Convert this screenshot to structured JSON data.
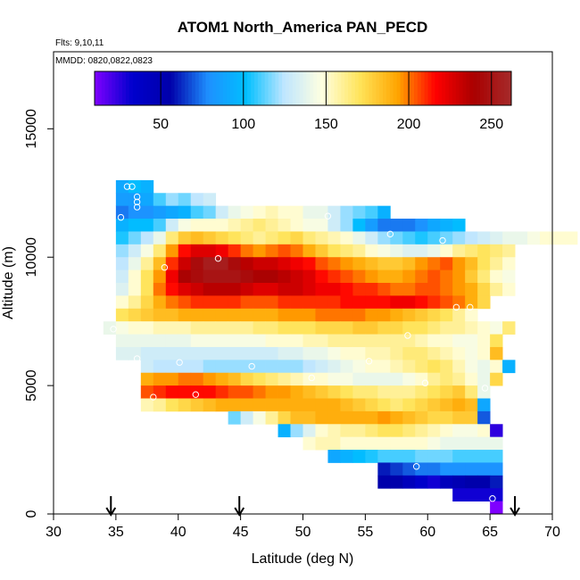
{
  "chart_data": {
    "type": "heatmap",
    "title": "ATOM1 North_America PAN_PECD",
    "flights_note": "Flts: 9,10,11",
    "dates_note": "MMDD: 0820,0822,0823",
    "xlabel": "Latitude (deg N)",
    "ylabel": "Altitude (m)",
    "xlim": [
      30,
      70
    ],
    "ylim": [
      0,
      18000
    ],
    "xticks": [
      30,
      35,
      40,
      45,
      50,
      55,
      60,
      65,
      70
    ],
    "yticks": [
      0,
      5000,
      10000,
      15000
    ],
    "colorbar": {
      "min": 10,
      "max": 262,
      "ticks": [
        50,
        100,
        150,
        200,
        250
      ],
      "colors": [
        "#7f00ff",
        "#0000cd",
        "#0000aa",
        "#1e90ff",
        "#00bfff",
        "#bfe6ff",
        "#ffffe0",
        "#ffe45a",
        "#ffa500",
        "#ff0000",
        "#aa0000",
        "#a52a2a"
      ]
    },
    "cell_size": {
      "lat_deg": 1,
      "alt_m": 500
    },
    "rows": [
      {
        "alt": 12750,
        "lat_start": 35,
        "values": [
          90,
          100,
          95
        ]
      },
      {
        "alt": 12250,
        "lat_start": 35,
        "values": [
          85,
          85,
          90,
          110,
          120,
          115,
          125,
          130
        ]
      },
      {
        "alt": 11750,
        "lat_start": 35,
        "values": [
          75,
          80,
          80,
          85,
          90,
          95,
          110,
          115,
          130,
          140,
          145,
          150,
          155,
          150,
          150,
          140,
          140,
          130,
          120,
          115,
          110,
          95
        ]
      },
      {
        "alt": 11250,
        "lat_start": 35,
        "values": [
          95,
          100,
          100,
          110,
          130,
          145,
          150,
          150,
          150,
          155,
          160,
          165,
          160,
          155,
          150,
          145,
          145,
          130,
          120,
          100,
          85,
          75,
          75,
          75,
          80,
          90,
          95,
          100
        ]
      },
      {
        "alt": 10750,
        "lat_start": 35,
        "values": [
          105,
          115,
          125,
          140,
          165,
          180,
          185,
          180,
          175,
          170,
          165,
          160,
          165,
          170,
          175,
          165,
          160,
          155,
          150,
          140,
          130,
          120,
          115,
          110,
          105,
          110,
          115,
          120,
          125,
          130,
          135,
          140,
          140,
          145,
          150,
          150,
          150
        ]
      },
      {
        "alt": 10250,
        "lat_start": 35,
        "values": [
          120,
          130,
          145,
          165,
          195,
          215,
          225,
          225,
          220,
          210,
          200,
          195,
          200,
          205,
          200,
          190,
          180,
          170,
          165,
          160,
          150,
          145,
          140,
          135,
          135,
          140,
          150,
          160,
          165,
          170,
          165,
          160
        ]
      },
      {
        "alt": 9750,
        "lat_start": 35,
        "values": [
          125,
          140,
          160,
          185,
          210,
          230,
          245,
          255,
          255,
          245,
          235,
          230,
          230,
          225,
          220,
          215,
          205,
          200,
          195,
          190,
          185,
          180,
          180,
          185,
          195,
          200,
          205,
          195,
          185,
          170,
          160,
          150
        ]
      },
      {
        "alt": 9250,
        "lat_start": 35,
        "values": [
          130,
          150,
          170,
          195,
          220,
          240,
          245,
          250,
          250,
          250,
          245,
          240,
          240,
          235,
          230,
          225,
          215,
          210,
          205,
          200,
          195,
          190,
          190,
          195,
          200,
          205,
          200,
          195,
          180,
          165,
          150,
          145
        ]
      },
      {
        "alt": 8750,
        "lat_start": 35,
        "values": [
          135,
          150,
          170,
          200,
          215,
          225,
          230,
          235,
          235,
          235,
          230,
          225,
          225,
          230,
          230,
          225,
          220,
          220,
          215,
          210,
          210,
          205,
          200,
          200,
          205,
          205,
          200,
          195,
          190,
          175,
          160,
          150
        ]
      },
      {
        "alt": 8250,
        "lat_start": 35,
        "values": [
          150,
          160,
          175,
          190,
          200,
          205,
          210,
          210,
          210,
          210,
          205,
          205,
          205,
          210,
          210,
          210,
          210,
          210,
          215,
          215,
          215,
          215,
          220,
          220,
          215,
          210,
          205,
          200,
          190,
          175
        ]
      },
      {
        "alt": 7750,
        "lat_start": 35,
        "values": [
          170,
          175,
          180,
          185,
          185,
          190,
          190,
          190,
          190,
          190,
          190,
          190,
          190,
          195,
          195,
          195,
          200,
          200,
          200,
          200,
          195,
          195,
          190,
          185,
          180,
          175,
          170,
          160,
          150
        ]
      },
      {
        "alt": 7250,
        "lat_start": 34,
        "values": [
          140,
          145,
          150,
          150,
          155,
          155,
          155,
          160,
          160,
          160,
          160,
          160,
          165,
          165,
          170,
          170,
          170,
          175,
          175,
          175,
          180,
          180,
          175,
          175,
          170,
          170,
          165,
          160,
          160,
          155,
          150,
          145,
          165
        ]
      },
      {
        "alt": 6750,
        "lat_start": 35,
        "values": [
          140,
          140,
          140,
          140,
          140,
          140,
          145,
          145,
          145,
          145,
          145,
          145,
          150,
          150,
          150,
          155,
          155,
          160,
          160,
          160,
          160,
          160,
          160,
          160,
          155,
          150,
          150,
          145,
          145,
          150,
          170
        ]
      },
      {
        "alt": 6250,
        "lat_start": 35,
        "values": [
          135,
          135,
          130,
          130,
          130,
          130,
          130,
          130,
          130,
          130,
          130,
          130,
          130,
          135,
          135,
          140,
          140,
          145,
          150,
          150,
          155,
          155,
          160,
          165,
          165,
          160,
          155,
          150,
          145,
          150,
          185
        ]
      },
      {
        "alt": 5750,
        "lat_start": 37,
        "values": [
          130,
          125,
          125,
          125,
          125,
          120,
          120,
          120,
          120,
          120,
          120,
          120,
          120,
          125,
          130,
          135,
          140,
          145,
          150,
          150,
          155,
          160,
          165,
          170,
          165,
          155,
          145,
          140,
          150,
          95
        ]
      },
      {
        "alt": 5250,
        "lat_start": 37,
        "values": [
          190,
          195,
          195,
          200,
          200,
          195,
          190,
          185,
          175,
          170,
          165,
          160,
          155,
          150,
          150,
          145,
          145,
          140,
          140,
          140,
          140,
          145,
          150,
          160,
          165,
          160,
          150,
          140,
          175
        ]
      },
      {
        "alt": 4750,
        "lat_start": 37,
        "values": [
          205,
          210,
          215,
          215,
          215,
          215,
          210,
          205,
          205,
          200,
          195,
          195,
          190,
          185,
          180,
          175,
          170,
          165,
          165,
          160,
          160,
          160,
          165,
          170,
          175,
          180,
          165,
          140
        ]
      },
      {
        "alt": 4250,
        "lat_start": 37,
        "values": [
          155,
          160,
          170,
          175,
          180,
          185,
          190,
          190,
          190,
          190,
          190,
          190,
          190,
          190,
          190,
          190,
          185,
          180,
          175,
          170,
          165,
          170,
          175,
          180,
          185,
          190,
          185,
          90
        ]
      },
      {
        "alt": 3750,
        "lat_start": 44,
        "values": [
          115,
          130,
          145,
          160,
          175,
          185,
          185,
          190,
          190,
          190,
          190,
          190,
          195,
          190,
          185,
          180,
          175,
          175,
          180,
          180,
          70
        ]
      },
      {
        "alt": 3250,
        "lat_start": 48,
        "values": [
          95,
          120,
          135,
          150,
          155,
          160,
          160,
          165,
          170,
          170,
          165,
          160,
          155,
          150,
          145,
          145,
          150,
          25
        ]
      },
      {
        "alt": 2750,
        "lat_start": 50,
        "values": [
          150,
          155,
          155,
          150,
          150,
          150,
          150,
          150,
          150,
          150,
          145,
          140,
          140,
          140,
          140,
          140
        ]
      },
      {
        "alt": 2250,
        "lat_start": 52,
        "values": [
          90,
          95,
          100,
          105,
          110,
          110,
          110,
          115,
          115,
          115,
          110,
          110,
          110,
          110
        ]
      },
      {
        "alt": 1750,
        "lat_start": 56,
        "values": [
          60,
          65,
          70,
          75,
          75,
          80,
          80,
          80,
          80,
          80
        ]
      },
      {
        "alt": 1250,
        "lat_start": 56,
        "values": [
          55,
          55,
          45,
          35,
          30,
          45,
          50,
          55,
          55,
          60
        ]
      },
      {
        "alt": 750,
        "lat_start": 62,
        "values": [
          30,
          30,
          30,
          30
        ]
      },
      {
        "alt": 250,
        "lat_start": 65,
        "values": [
          10
        ]
      }
    ],
    "points": [
      {
        "lat": 35.9,
        "alt": 12750
      },
      {
        "lat": 36.3,
        "alt": 12750
      },
      {
        "lat": 36.7,
        "alt": 12350
      },
      {
        "lat": 36.7,
        "alt": 12150
      },
      {
        "lat": 36.7,
        "alt": 11950
      },
      {
        "lat": 35.4,
        "alt": 11550
      },
      {
        "lat": 52.0,
        "alt": 11600
      },
      {
        "lat": 57.0,
        "alt": 10900
      },
      {
        "lat": 61.2,
        "alt": 10650
      },
      {
        "lat": 43.2,
        "alt": 9950
      },
      {
        "lat": 38.9,
        "alt": 9600
      },
      {
        "lat": 62.3,
        "alt": 8050
      },
      {
        "lat": 63.4,
        "alt": 8050
      },
      {
        "lat": 65.6,
        "alt": 7900
      },
      {
        "lat": 34.8,
        "alt": 7200
      },
      {
        "lat": 58.4,
        "alt": 6950
      },
      {
        "lat": 36.7,
        "alt": 6050
      },
      {
        "lat": 40.1,
        "alt": 5900
      },
      {
        "lat": 45.9,
        "alt": 5750
      },
      {
        "lat": 55.3,
        "alt": 5950
      },
      {
        "lat": 50.7,
        "alt": 5300
      },
      {
        "lat": 59.8,
        "alt": 5100
      },
      {
        "lat": 64.6,
        "alt": 4900
      },
      {
        "lat": 41.4,
        "alt": 4650
      },
      {
        "lat": 38.0,
        "alt": 4550
      },
      {
        "lat": 65.5,
        "alt": 3950
      },
      {
        "lat": 59.1,
        "alt": 1850
      },
      {
        "lat": 65.2,
        "alt": 600
      }
    ],
    "arrows_lat": [
      34.6,
      44.9,
      67.0
    ]
  }
}
